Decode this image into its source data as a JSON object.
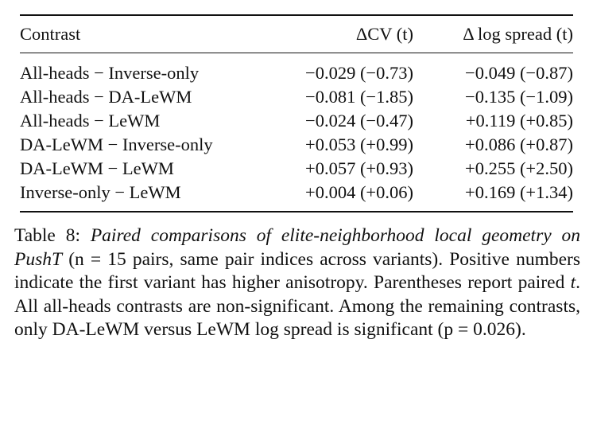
{
  "table": {
    "headers": [
      "Contrast",
      "ΔCV (t)",
      "Δ log spread (t)"
    ],
    "rows": [
      {
        "contrast": "All-heads − Inverse-only",
        "dcv": "−0.029 (−0.73)",
        "dlog": "−0.049 (−0.87)"
      },
      {
        "contrast": "All-heads − DA-LeWM",
        "dcv": "−0.081 (−1.85)",
        "dlog": "−0.135 (−1.09)"
      },
      {
        "contrast": "All-heads − LeWM",
        "dcv": "−0.024 (−0.47)",
        "dlog": "+0.119 (+0.85)"
      },
      {
        "contrast": "DA-LeWM − Inverse-only",
        "dcv": "+0.053 (+0.99)",
        "dlog": "+0.086 (+0.87)"
      },
      {
        "contrast": "DA-LeWM − LeWM",
        "dcv": "+0.057 (+0.93)",
        "dlog": "+0.255 (+2.50)"
      },
      {
        "contrast": "Inverse-only − LeWM",
        "dcv": "+0.004 (+0.06)",
        "dlog": "+0.169 (+1.34)"
      }
    ]
  },
  "caption": {
    "label": "Table 8:",
    "title_italic": "Paired comparisons of elite-neighborhood local geometry on PushT",
    "body_part1": "(n = 15 pairs, same pair indices across variants). Positive numbers indicate the first variant has higher anisotropy. Parentheses report paired ",
    "t_symbol": "t",
    "body_part2": ". All all-heads contrasts are non-significant. Among the remaining contrasts, only DA-LeWM versus LeWM log spread is significant (p = 0.026)."
  }
}
